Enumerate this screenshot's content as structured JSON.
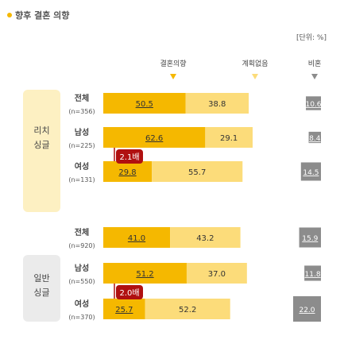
{
  "chart_data": {
    "type": "bar",
    "title": "향후 결혼 의향",
    "unit": "[단위: %]",
    "series": [
      {
        "name": "결혼의향",
        "color": "#f5b800"
      },
      {
        "name": "계획없음",
        "color": "#fcdc7a"
      },
      {
        "name": "비혼",
        "color": "#8c8c8c"
      }
    ],
    "groups": [
      {
        "name": "리치 싱글",
        "name_lines": [
          "리치",
          "싱글"
        ],
        "rows": [
          {
            "label": "전체",
            "sub": "(n=356)",
            "values": [
              50.5,
              38.8,
              10.6
            ]
          },
          {
            "label": "남성",
            "sub": "(n=225)",
            "values": [
              62.6,
              29.1,
              8.4
            ]
          },
          {
            "label": "여성",
            "sub": "(n=131)",
            "values": [
              29.8,
              55.7,
              14.5
            ]
          }
        ],
        "ratio_label": "2.1배"
      },
      {
        "name": "일반 싱글",
        "name_lines": [
          "일반",
          "싱글"
        ],
        "rows": [
          {
            "label": "전체",
            "sub": "(n=920)",
            "values": [
              41.0,
              43.2,
              15.9
            ]
          },
          {
            "label": "남성",
            "sub": "(n=550)",
            "values": [
              51.2,
              37.0,
              11.8
            ]
          },
          {
            "label": "여성",
            "sub": "(n=370)",
            "values": [
              25.7,
              52.2,
              22.0
            ]
          }
        ],
        "ratio_label": "2.0배"
      }
    ],
    "colors": {
      "accent": "#f5b800",
      "light": "#fcdc7a",
      "gray": "#8c8c8c",
      "ratio_badge": "#b01010",
      "group_bg_rich": "#fdf0c2",
      "group_bg_general": "#ebebeb"
    }
  }
}
